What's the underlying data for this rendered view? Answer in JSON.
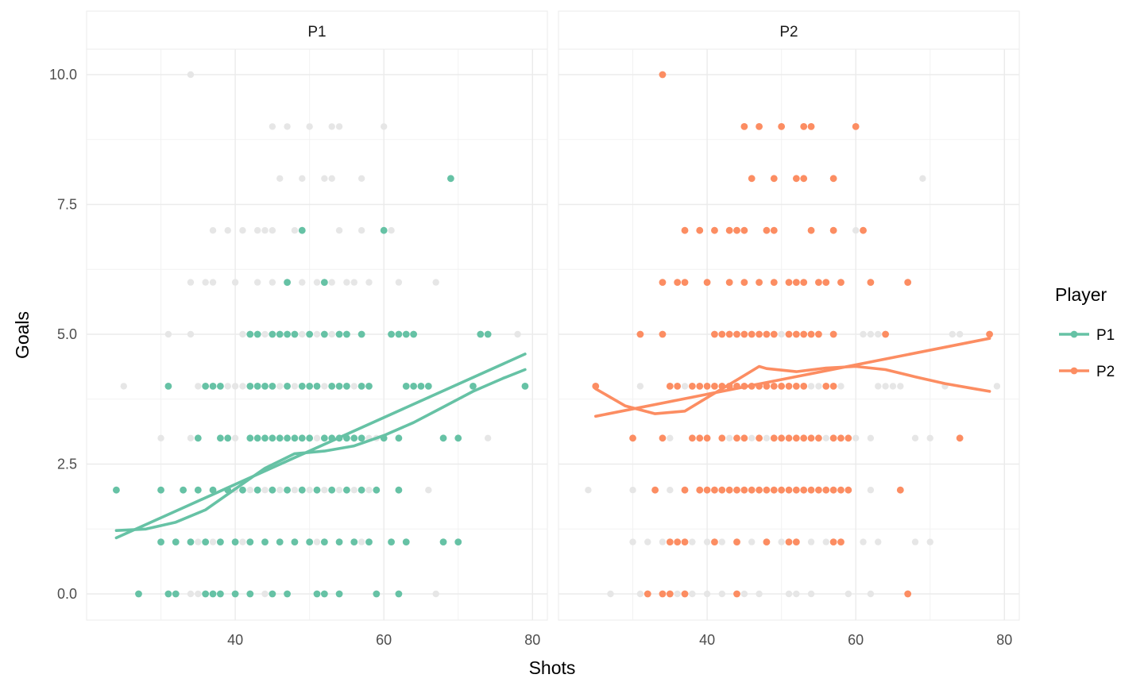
{
  "chart_data": {
    "type": "scatter",
    "facets": [
      "P1",
      "P2"
    ],
    "xlabel": "Shots",
    "ylabel": "Goals",
    "xlim": [
      20,
      82
    ],
    "ylim": [
      -0.5,
      10.5
    ],
    "x_ticks": [
      40,
      60,
      80
    ],
    "x_tick_labels": [
      "40",
      "60",
      "80"
    ],
    "y_ticks": [
      0,
      2.5,
      5,
      7.5,
      10
    ],
    "y_tick_labels": [
      "0.0",
      "2.5",
      "5.0",
      "7.5",
      "10.0"
    ],
    "grid": true,
    "background_points_color": "#e6e6e6",
    "legend": {
      "title": "Player",
      "position": "right",
      "entries": [
        {
          "label": "P1",
          "color": "#66c2a5"
        },
        {
          "label": "P2",
          "color": "#fc8d62"
        }
      ]
    },
    "series": [
      {
        "name": "P1",
        "color": "#66c2a5",
        "points": [
          [
            24,
            2
          ],
          [
            30,
            2
          ],
          [
            33,
            2
          ],
          [
            35,
            2
          ],
          [
            37,
            2
          ],
          [
            39,
            2
          ],
          [
            41,
            2
          ],
          [
            43,
            2
          ],
          [
            45,
            2
          ],
          [
            47,
            2
          ],
          [
            49,
            2
          ],
          [
            51,
            2
          ],
          [
            53,
            2
          ],
          [
            55,
            2
          ],
          [
            57,
            2
          ],
          [
            59,
            2
          ],
          [
            62,
            2
          ],
          [
            30,
            1
          ],
          [
            32,
            1
          ],
          [
            34,
            1
          ],
          [
            36,
            1
          ],
          [
            38,
            1
          ],
          [
            40,
            1
          ],
          [
            42,
            1
          ],
          [
            44,
            1
          ],
          [
            46,
            1
          ],
          [
            48,
            1
          ],
          [
            50,
            1
          ],
          [
            52,
            1
          ],
          [
            54,
            1
          ],
          [
            56,
            1
          ],
          [
            58,
            1
          ],
          [
            61,
            1
          ],
          [
            63,
            1
          ],
          [
            68,
            1
          ],
          [
            70,
            1
          ],
          [
            27,
            0
          ],
          [
            31,
            0
          ],
          [
            32,
            0
          ],
          [
            36,
            0
          ],
          [
            37,
            0
          ],
          [
            38,
            0
          ],
          [
            40,
            0
          ],
          [
            42,
            0
          ],
          [
            45,
            0
          ],
          [
            47,
            0
          ],
          [
            51,
            0
          ],
          [
            52,
            0
          ],
          [
            54,
            0
          ],
          [
            59,
            0
          ],
          [
            62,
            0
          ],
          [
            35,
            3
          ],
          [
            38,
            3
          ],
          [
            39,
            3
          ],
          [
            42,
            3
          ],
          [
            43,
            3
          ],
          [
            44,
            3
          ],
          [
            45,
            3
          ],
          [
            46,
            3
          ],
          [
            47,
            3
          ],
          [
            48,
            3
          ],
          [
            49,
            3
          ],
          [
            50,
            3
          ],
          [
            52,
            3
          ],
          [
            53,
            3
          ],
          [
            54,
            3
          ],
          [
            55,
            3
          ],
          [
            56,
            3
          ],
          [
            57,
            3
          ],
          [
            60,
            3
          ],
          [
            62,
            3
          ],
          [
            68,
            3
          ],
          [
            70,
            3
          ],
          [
            31,
            4
          ],
          [
            36,
            4
          ],
          [
            37,
            4
          ],
          [
            38,
            4
          ],
          [
            42,
            4
          ],
          [
            43,
            4
          ],
          [
            44,
            4
          ],
          [
            45,
            4
          ],
          [
            47,
            4
          ],
          [
            49,
            4
          ],
          [
            50,
            4
          ],
          [
            51,
            4
          ],
          [
            53,
            4
          ],
          [
            54,
            4
          ],
          [
            55,
            4
          ],
          [
            57,
            4
          ],
          [
            58,
            4
          ],
          [
            63,
            4
          ],
          [
            64,
            4
          ],
          [
            65,
            4
          ],
          [
            66,
            4
          ],
          [
            72,
            4
          ],
          [
            79,
            4
          ],
          [
            42,
            5
          ],
          [
            43,
            5
          ],
          [
            45,
            5
          ],
          [
            46,
            5
          ],
          [
            47,
            5
          ],
          [
            48,
            5
          ],
          [
            50,
            5
          ],
          [
            52,
            5
          ],
          [
            54,
            5
          ],
          [
            55,
            5
          ],
          [
            57,
            5
          ],
          [
            61,
            5
          ],
          [
            62,
            5
          ],
          [
            63,
            5
          ],
          [
            64,
            5
          ],
          [
            73,
            5
          ],
          [
            74,
            5
          ],
          [
            47,
            6
          ],
          [
            52,
            6
          ],
          [
            49,
            7
          ],
          [
            60,
            7
          ],
          [
            69,
            8
          ]
        ]
      },
      {
        "name": "P2",
        "color": "#fc8d62",
        "points": [
          [
            25,
            4
          ],
          [
            35,
            4
          ],
          [
            36,
            4
          ],
          [
            38,
            4
          ],
          [
            39,
            4
          ],
          [
            40,
            4
          ],
          [
            41,
            4
          ],
          [
            42,
            4
          ],
          [
            43,
            4
          ],
          [
            44,
            4
          ],
          [
            45,
            4
          ],
          [
            46,
            4
          ],
          [
            47,
            4
          ],
          [
            48,
            4
          ],
          [
            49,
            4
          ],
          [
            50,
            4
          ],
          [
            51,
            4
          ],
          [
            52,
            4
          ],
          [
            53,
            4
          ],
          [
            56,
            4
          ],
          [
            57,
            4
          ],
          [
            31,
            5
          ],
          [
            34,
            5
          ],
          [
            41,
            5
          ],
          [
            42,
            5
          ],
          [
            43,
            5
          ],
          [
            44,
            5
          ],
          [
            45,
            5
          ],
          [
            46,
            5
          ],
          [
            47,
            5
          ],
          [
            48,
            5
          ],
          [
            49,
            5
          ],
          [
            51,
            5
          ],
          [
            52,
            5
          ],
          [
            53,
            5
          ],
          [
            54,
            5
          ],
          [
            55,
            5
          ],
          [
            57,
            5
          ],
          [
            64,
            5
          ],
          [
            78,
            5
          ],
          [
            30,
            3
          ],
          [
            34,
            3
          ],
          [
            38,
            3
          ],
          [
            39,
            3
          ],
          [
            40,
            3
          ],
          [
            42,
            3
          ],
          [
            44,
            3
          ],
          [
            45,
            3
          ],
          [
            47,
            3
          ],
          [
            49,
            3
          ],
          [
            50,
            3
          ],
          [
            51,
            3
          ],
          [
            52,
            3
          ],
          [
            53,
            3
          ],
          [
            54,
            3
          ],
          [
            55,
            3
          ],
          [
            57,
            3
          ],
          [
            58,
            3
          ],
          [
            59,
            3
          ],
          [
            74,
            3
          ],
          [
            33,
            2
          ],
          [
            37,
            2
          ],
          [
            39,
            2
          ],
          [
            40,
            2
          ],
          [
            41,
            2
          ],
          [
            42,
            2
          ],
          [
            43,
            2
          ],
          [
            44,
            2
          ],
          [
            45,
            2
          ],
          [
            46,
            2
          ],
          [
            47,
            2
          ],
          [
            48,
            2
          ],
          [
            49,
            2
          ],
          [
            50,
            2
          ],
          [
            51,
            2
          ],
          [
            52,
            2
          ],
          [
            53,
            2
          ],
          [
            54,
            2
          ],
          [
            55,
            2
          ],
          [
            56,
            2
          ],
          [
            57,
            2
          ],
          [
            58,
            2
          ],
          [
            59,
            2
          ],
          [
            66,
            2
          ],
          [
            35,
            1
          ],
          [
            36,
            1
          ],
          [
            37,
            1
          ],
          [
            41,
            1
          ],
          [
            44,
            1
          ],
          [
            48,
            1
          ],
          [
            51,
            1
          ],
          [
            52,
            1
          ],
          [
            57,
            1
          ],
          [
            58,
            1
          ],
          [
            32,
            0
          ],
          [
            34,
            0
          ],
          [
            35,
            0
          ],
          [
            37,
            0
          ],
          [
            44,
            0
          ],
          [
            67,
            0
          ],
          [
            34,
            6
          ],
          [
            36,
            6
          ],
          [
            37,
            6
          ],
          [
            40,
            6
          ],
          [
            43,
            6
          ],
          [
            45,
            6
          ],
          [
            47,
            6
          ],
          [
            49,
            6
          ],
          [
            51,
            6
          ],
          [
            52,
            6
          ],
          [
            53,
            6
          ],
          [
            55,
            6
          ],
          [
            56,
            6
          ],
          [
            58,
            6
          ],
          [
            62,
            6
          ],
          [
            67,
            6
          ],
          [
            37,
            7
          ],
          [
            39,
            7
          ],
          [
            41,
            7
          ],
          [
            43,
            7
          ],
          [
            44,
            7
          ],
          [
            45,
            7
          ],
          [
            48,
            7
          ],
          [
            49,
            7
          ],
          [
            54,
            7
          ],
          [
            57,
            7
          ],
          [
            61,
            7
          ],
          [
            46,
            8
          ],
          [
            49,
            8
          ],
          [
            52,
            8
          ],
          [
            53,
            8
          ],
          [
            57,
            8
          ],
          [
            45,
            9
          ],
          [
            47,
            9
          ],
          [
            50,
            9
          ],
          [
            53,
            9
          ],
          [
            54,
            9
          ],
          [
            60,
            9
          ],
          [
            34,
            10
          ]
        ]
      }
    ],
    "smooth_lines": [
      {
        "series": "P1",
        "method": "linear",
        "x": [
          24,
          79
        ],
        "y": [
          1.08,
          4.62
        ]
      },
      {
        "series": "P1",
        "method": "loess",
        "x": [
          24,
          28,
          32,
          36,
          40,
          44,
          48,
          52,
          56,
          60,
          64,
          68,
          72,
          76,
          79
        ],
        "y": [
          1.22,
          1.25,
          1.38,
          1.62,
          2.02,
          2.42,
          2.7,
          2.75,
          2.85,
          3.05,
          3.3,
          3.6,
          3.9,
          4.15,
          4.32
        ]
      },
      {
        "series": "P2",
        "method": "linear",
        "x": [
          25,
          78
        ],
        "y": [
          3.42,
          4.92
        ]
      },
      {
        "series": "P2",
        "method": "loess",
        "x": [
          25,
          29,
          33,
          37,
          40,
          44,
          47,
          48,
          52,
          56,
          60,
          64,
          68,
          72,
          76,
          78
        ],
        "y": [
          3.95,
          3.62,
          3.47,
          3.52,
          3.78,
          4.12,
          4.38,
          4.34,
          4.28,
          4.35,
          4.38,
          4.32,
          4.18,
          4.05,
          3.95,
          3.9
        ]
      }
    ]
  }
}
